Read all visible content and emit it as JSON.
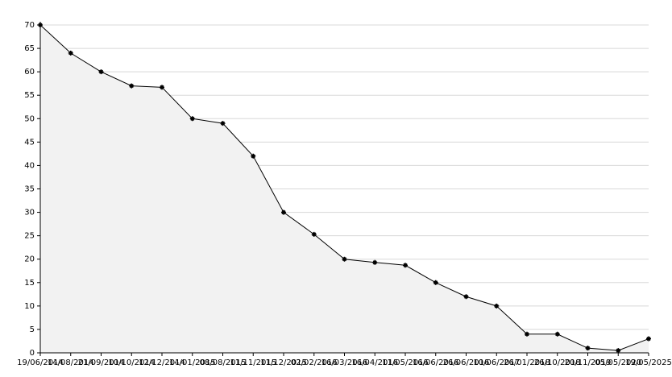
{
  "chart_data": {
    "type": "line",
    "categories": [
      "19/06/2014",
      "14/08/2014",
      "21/09/2014",
      "10/10/2014",
      "12/12/2014",
      "14/01/2015",
      "08/08/2015",
      "11/11/2015",
      "11/12/2015",
      "02/02/2016",
      "16/03/2016",
      "16/04/2016",
      "11/05/2016",
      "16/06/2016",
      "26/06/2016",
      "10/06/2017",
      "26/01/2018",
      "26/10/2018",
      "20/11/2019",
      "05/05/2020",
      "19/05/2025"
    ],
    "series": [
      {
        "name": "value",
        "color": "#000000",
        "values": [
          70,
          64,
          60,
          57,
          56.7,
          50,
          49,
          42,
          30,
          25.3,
          20,
          19.3,
          18.7,
          15,
          12,
          10,
          4,
          4,
          1,
          0.5,
          3
        ]
      }
    ],
    "area_color": "#f2f2f2",
    "ylim": [
      0,
      70
    ],
    "yticks": [
      0,
      5,
      10,
      15,
      20,
      25,
      30,
      35,
      40,
      45,
      50,
      55,
      60,
      65,
      70
    ],
    "grid": true
  }
}
